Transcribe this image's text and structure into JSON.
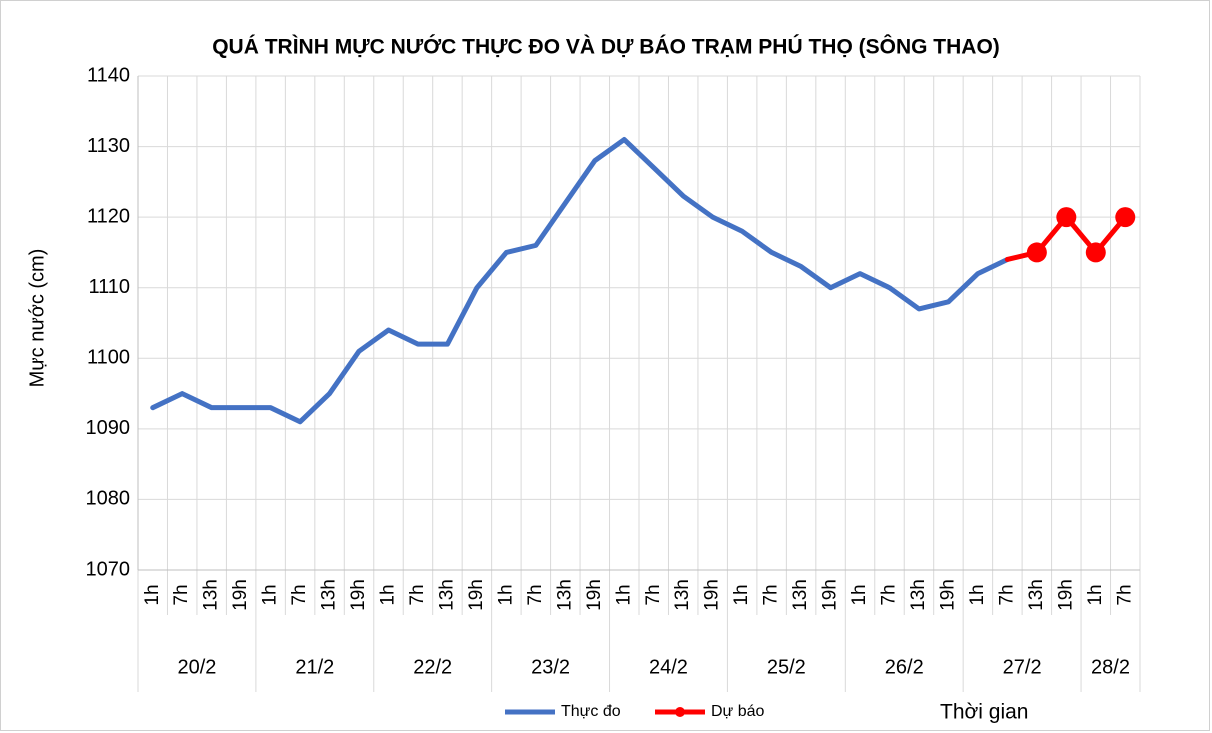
{
  "chart_data": {
    "type": "line",
    "title": "QUÁ TRÌNH MỰC NƯỚC THỰC ĐO VÀ DỰ BÁO TRẠM PHÚ THỌ (SÔNG THAO)",
    "ylabel": "Mực nước (cm)",
    "xlabel": "Thời gian",
    "groups": [
      {
        "label": "20/2",
        "categories": [
          "1h",
          "7h",
          "13h",
          "19h"
        ]
      },
      {
        "label": "21/2",
        "categories": [
          "1h",
          "7h",
          "13h",
          "19h"
        ]
      },
      {
        "label": "22/2",
        "categories": [
          "1h",
          "7h",
          "13h",
          "19h"
        ]
      },
      {
        "label": "23/2",
        "categories": [
          "1h",
          "7h",
          "13h",
          "19h"
        ]
      },
      {
        "label": "24/2",
        "categories": [
          "1h",
          "7h",
          "13h",
          "19h"
        ]
      },
      {
        "label": "25/2",
        "categories": [
          "1h",
          "7h",
          "13h",
          "19h"
        ]
      },
      {
        "label": "26/2",
        "categories": [
          "1h",
          "7h",
          "13h",
          "19h"
        ]
      },
      {
        "label": "27/2",
        "categories": [
          "1h",
          "7h",
          "13h",
          "19h"
        ]
      },
      {
        "label": "28/2",
        "categories": [
          "1h",
          "7h"
        ]
      }
    ],
    "series": [
      {
        "name": "Thực đo",
        "color": "#4472c4",
        "markers": false,
        "values": [
          1093,
          1095,
          1093,
          1093,
          1093,
          1091,
          1095,
          1101,
          1104,
          1102,
          1102,
          1110,
          1115,
          1116,
          1122,
          1128,
          1131,
          1127,
          1123,
          1120,
          1118,
          1115,
          1113,
          1110,
          1112,
          1110,
          1107,
          1108,
          1112,
          1114,
          null,
          null,
          null,
          null
        ]
      },
      {
        "name": "Dự báo",
        "color": "#ff0000",
        "markers": true,
        "values": [
          null,
          null,
          null,
          null,
          null,
          null,
          null,
          null,
          null,
          null,
          null,
          null,
          null,
          null,
          null,
          null,
          null,
          null,
          null,
          null,
          null,
          null,
          null,
          null,
          null,
          null,
          null,
          null,
          null,
          null,
          1115,
          1120,
          1115,
          1120
        ]
      }
    ],
    "ylim": [
      1070,
      1140
    ],
    "yticks": [
      1070,
      1080,
      1090,
      1100,
      1110,
      1120,
      1130,
      1140
    ],
    "grid": true
  }
}
